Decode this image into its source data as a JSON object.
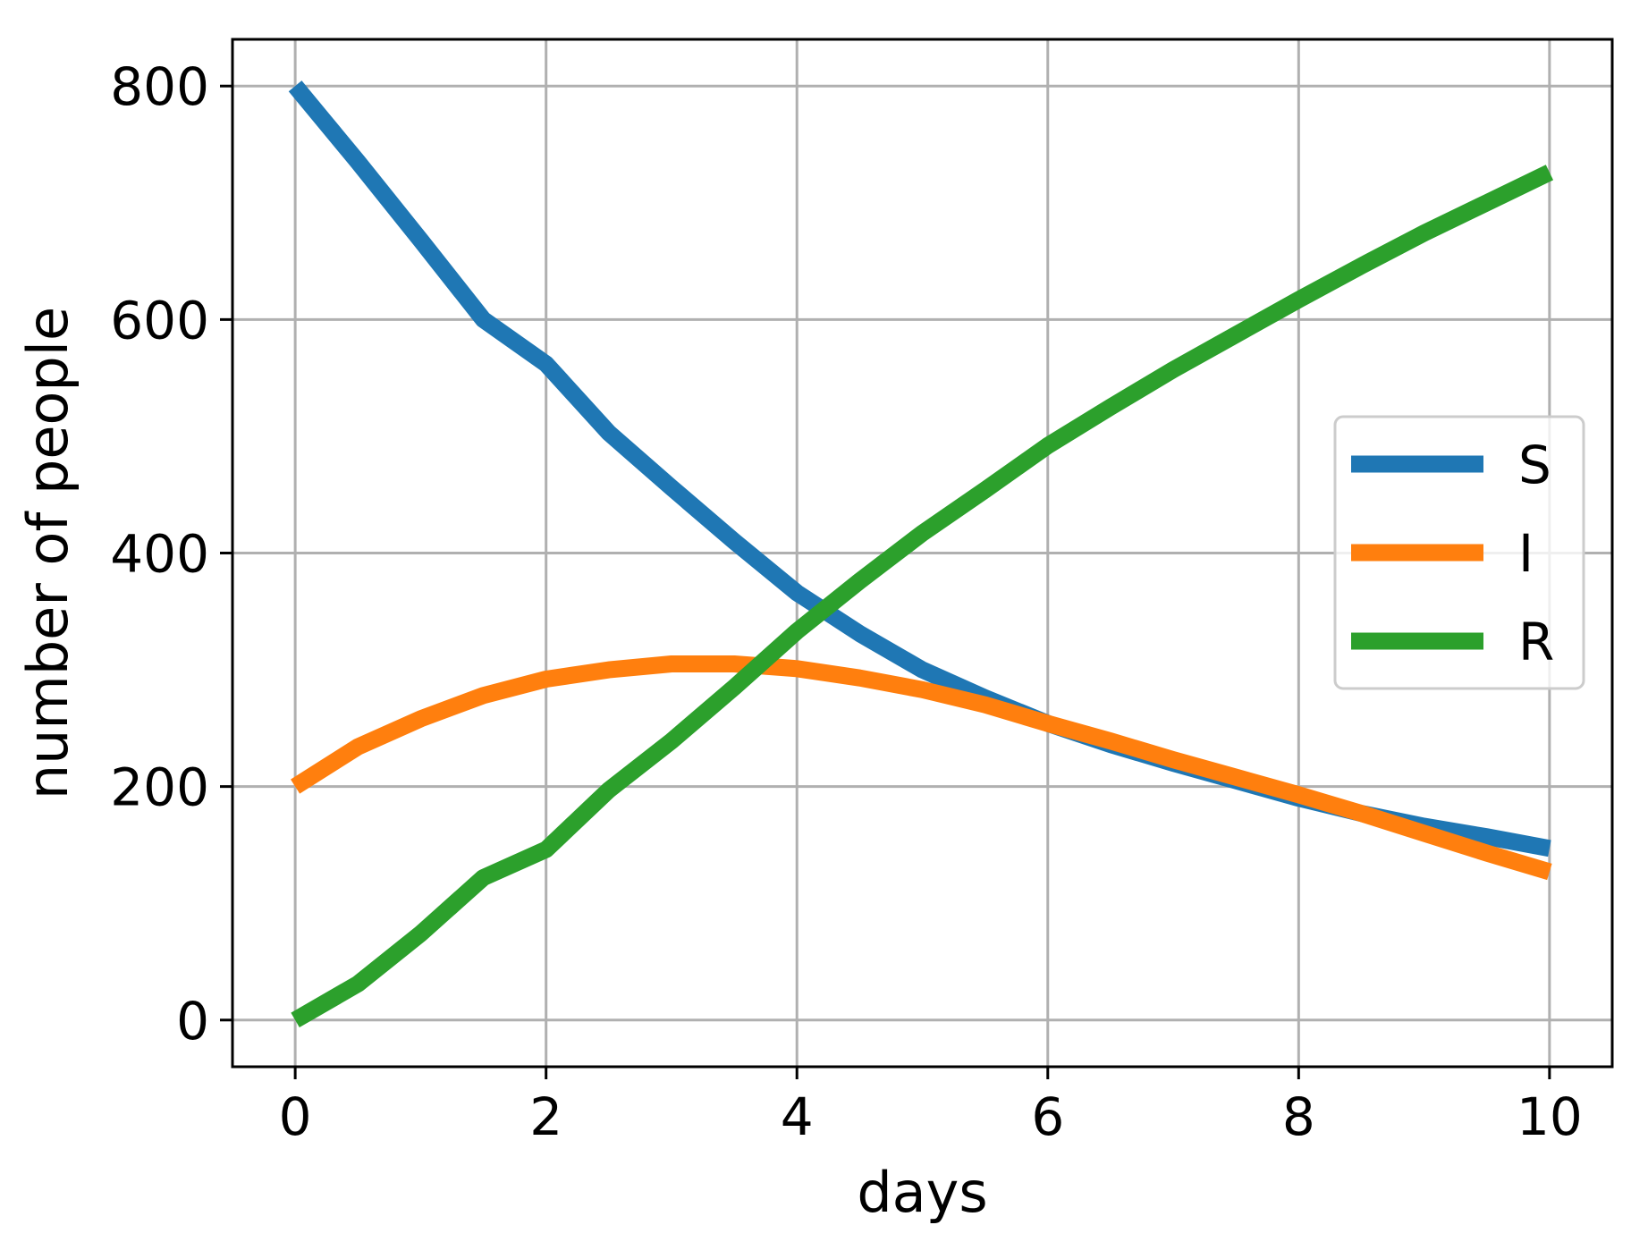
{
  "chart_data": {
    "type": "line",
    "title": "",
    "xlabel": "days",
    "ylabel": "number of people",
    "xlim": [
      -0.5,
      10.5
    ],
    "ylim": [
      -40,
      840
    ],
    "xticks": [
      0,
      2,
      4,
      6,
      8,
      10
    ],
    "yticks": [
      0,
      200,
      400,
      600,
      800
    ],
    "xtick_labels": [
      "0",
      "2",
      "4",
      "6",
      "8",
      "10"
    ],
    "ytick_labels": [
      "0",
      "200",
      "400",
      "600",
      "800"
    ],
    "grid": true,
    "legend": {
      "placement": "center-right",
      "entries": [
        "S",
        "I",
        "R"
      ]
    },
    "x": [
      0,
      0.5,
      1,
      1.5,
      2,
      2.5,
      3,
      3.5,
      4,
      4.5,
      5,
      5.5,
      6,
      6.5,
      7,
      7.5,
      8,
      8.5,
      9,
      9.5,
      10
    ],
    "series": [
      {
        "name": "S",
        "color": "#1f77b4",
        "values": [
          800,
          735,
          668,
          600,
          562,
          503,
          456,
          410,
          366,
          331,
          300,
          276,
          254,
          236,
          220,
          205,
          190,
          177,
          166,
          157,
          147
        ]
      },
      {
        "name": "I",
        "color": "#ff7f0e",
        "values": [
          200,
          234,
          258,
          278,
          292,
          300,
          305,
          305,
          301,
          293,
          283,
          270,
          254,
          239,
          223,
          208,
          193,
          177,
          160,
          143,
          127
        ]
      },
      {
        "name": "R",
        "color": "#2ca02c",
        "values": [
          0,
          31,
          74,
          122,
          146,
          197,
          239,
          285,
          333,
          376,
          417,
          454,
          492,
          525,
          557,
          587,
          617,
          646,
          674,
          700,
          726
        ]
      }
    ]
  }
}
